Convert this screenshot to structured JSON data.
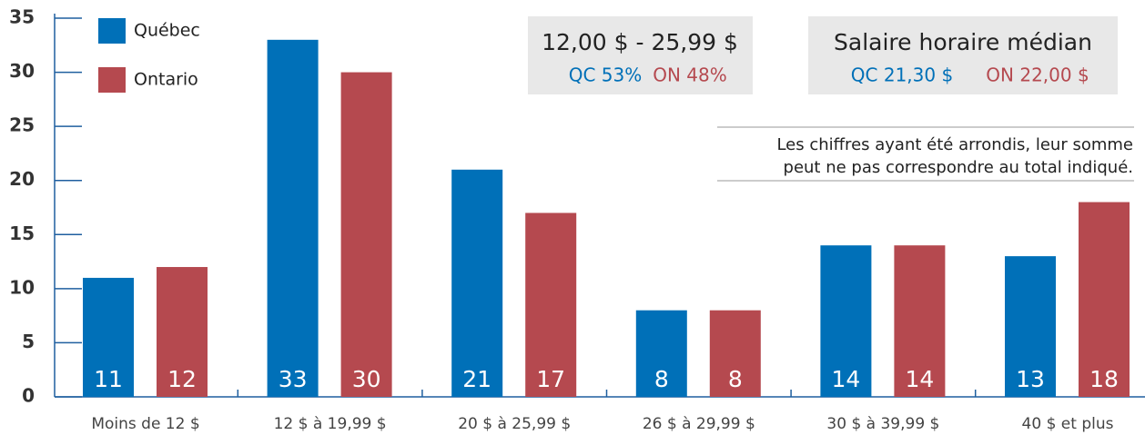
{
  "chart_data": {
    "type": "bar",
    "categories": [
      "Moins de 12 $",
      "12 $ à 19,99 $",
      "20 $ à 25,99 $",
      "26 $ à 29,99 $",
      "30 $ à 39,99 $",
      "40 $ et plus"
    ],
    "series": [
      {
        "name": "Québec",
        "color": "#0070b8",
        "values": [
          11,
          33,
          21,
          8,
          14,
          13
        ]
      },
      {
        "name": "Ontario",
        "color": "#b5494f",
        "values": [
          12,
          30,
          17,
          8,
          14,
          18
        ]
      }
    ],
    "ylim": [
      0,
      35
    ],
    "yticks": [
      0,
      5,
      10,
      15,
      20,
      25,
      30,
      35
    ],
    "grid": false,
    "legend": "top-left",
    "annotations": [
      {
        "title": "12,00 $ - 25,99 $",
        "items": [
          "QC 53%",
          "ON 48%"
        ]
      },
      {
        "title": "Salaire horaire médian",
        "items": [
          "QC 21,30 $",
          "ON 22,00 $"
        ]
      }
    ],
    "note": [
      "Les chiffres ayant été arrondis, leur somme",
      "peut ne pas correspondre au total indiqué."
    ]
  }
}
